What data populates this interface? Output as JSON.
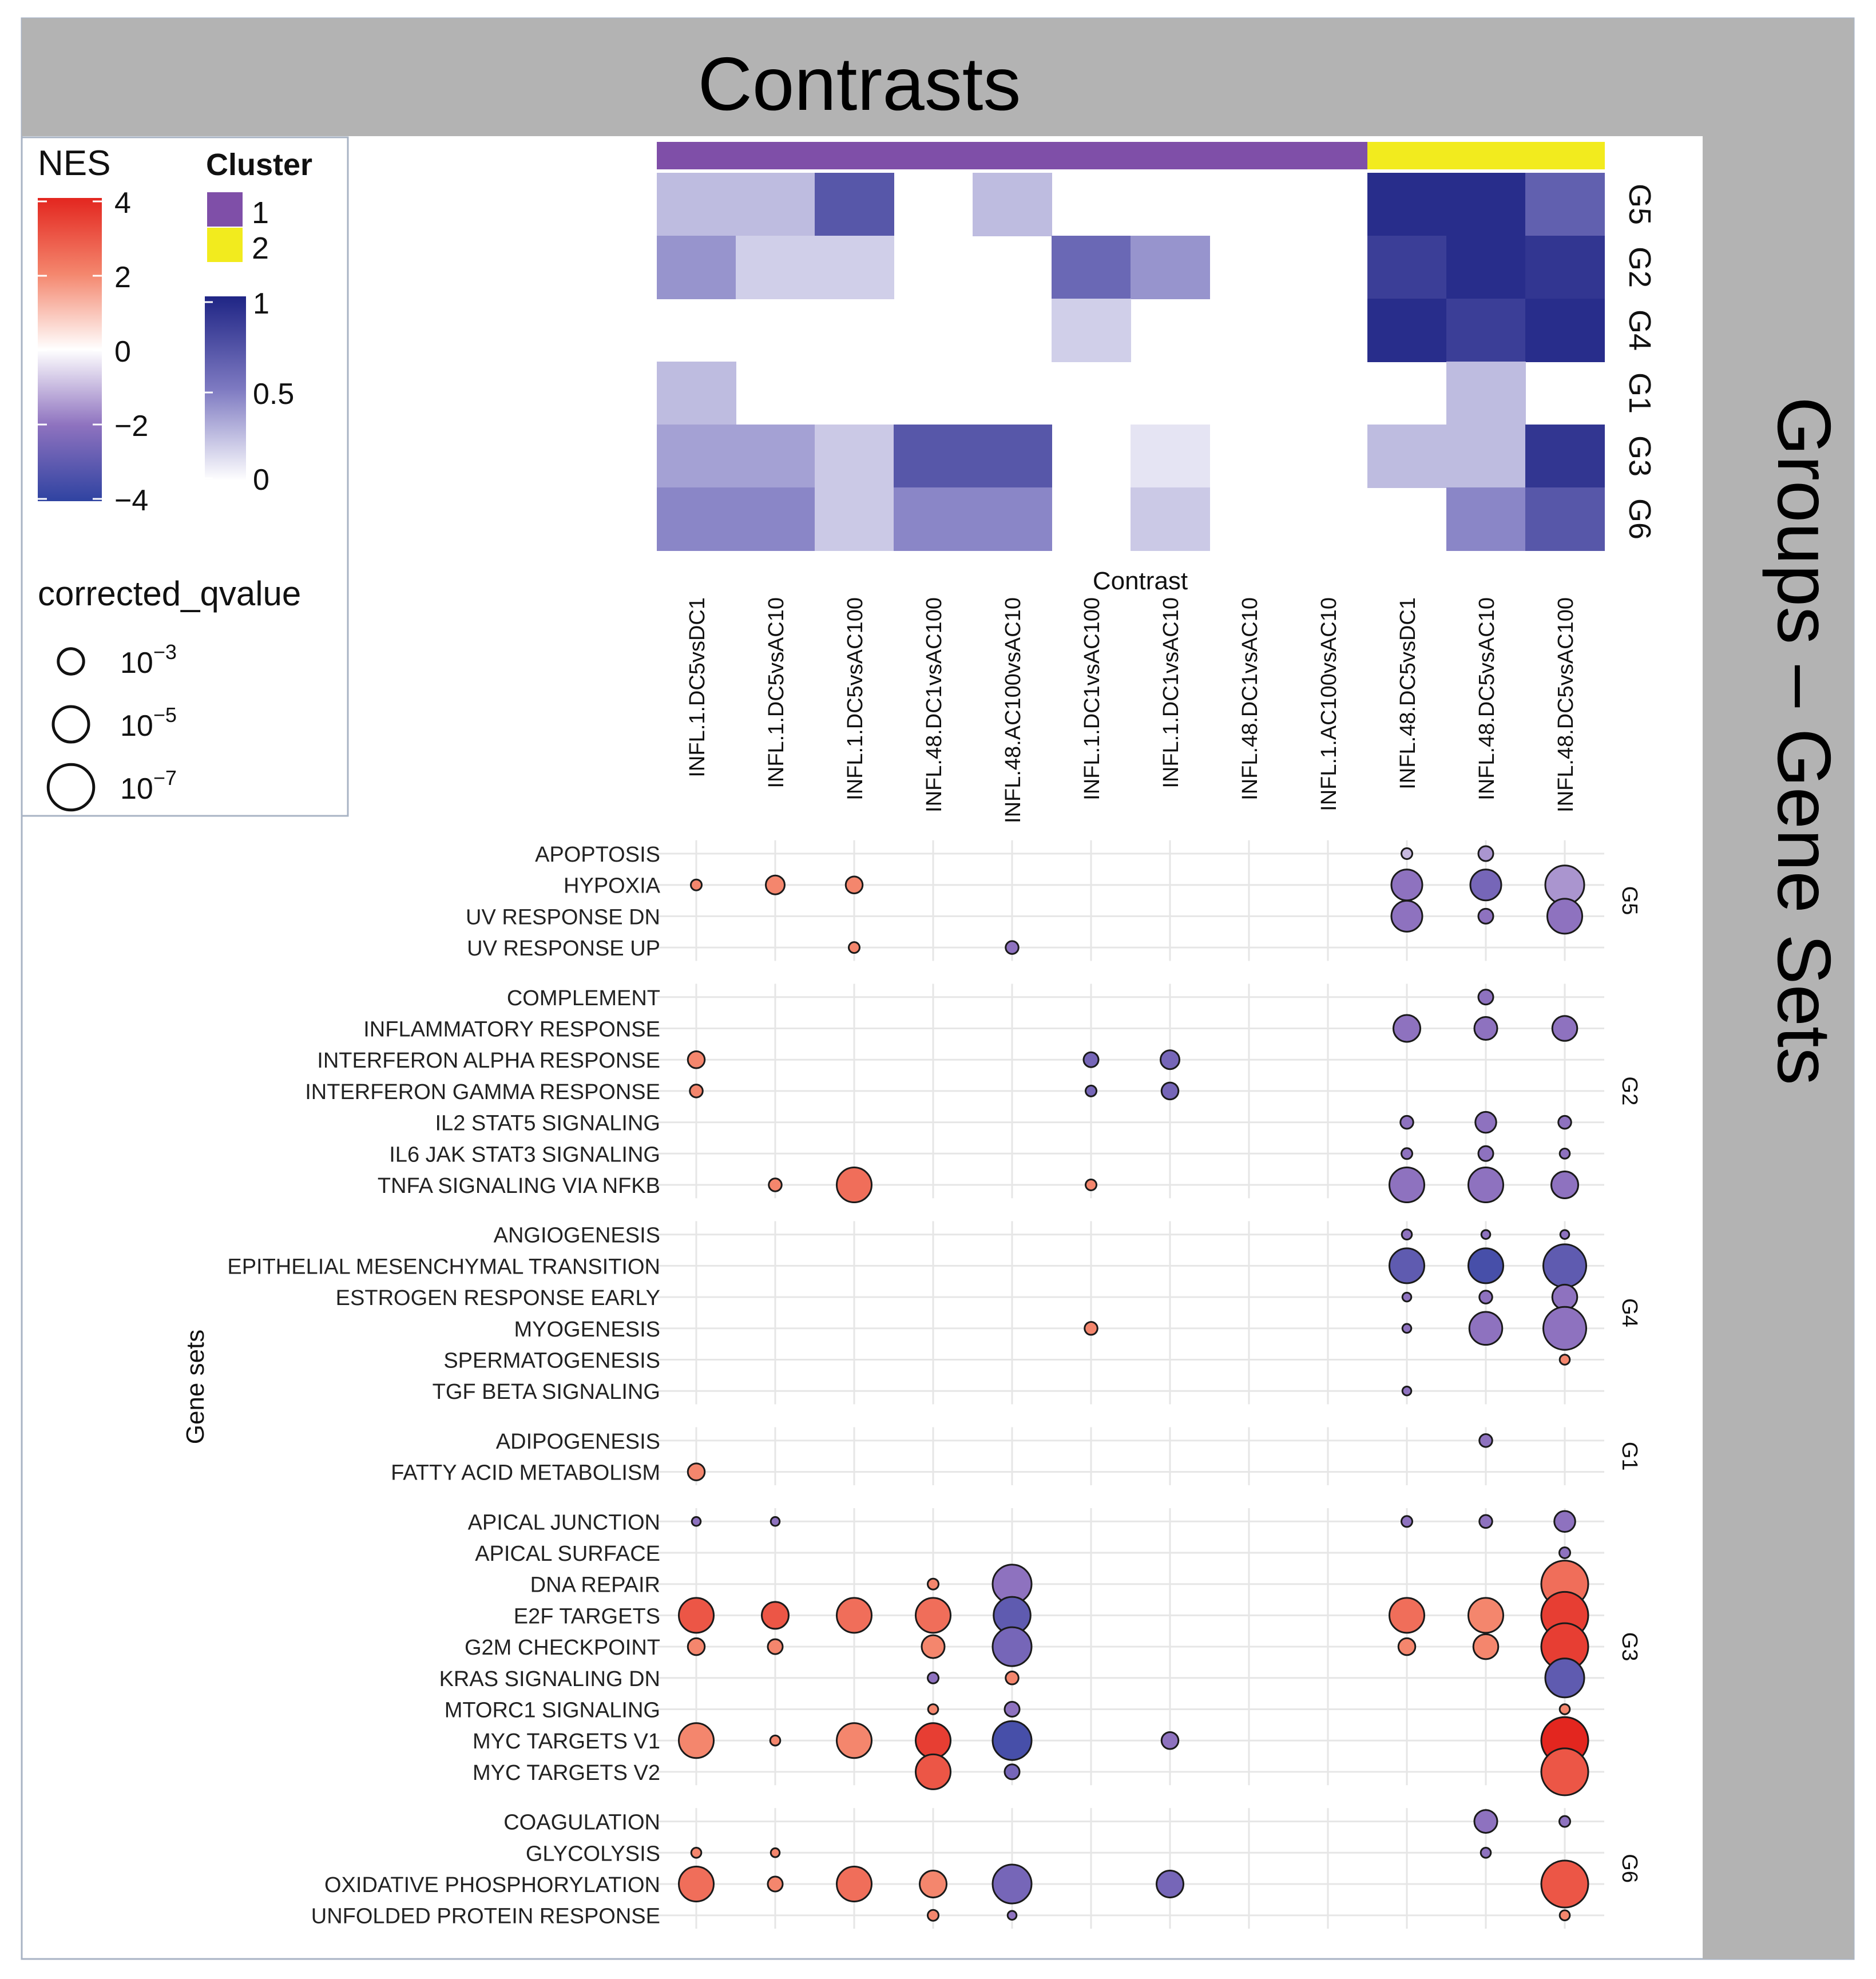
{
  "chart_data": {
    "type": "dot-heatmap",
    "title": "Contrasts",
    "right_strip_label": "Groups – Gene Sets",
    "xlabel": "Contrast",
    "ylabel": "Gene sets",
    "contrasts": [
      "INFL.1.DC5vsDC1",
      "INFL.1.DC5vsAC10",
      "INFL.1.DC5vsAC100",
      "INFL.48.DC1vsAC100",
      "INFL.48.AC100vsAC10",
      "INFL.1.DC1vsAC100",
      "INFL.1.DC1vsAC10",
      "INFL.48.DC1vsAC10",
      "INFL.1.AC100vsAC10",
      "INFL.48.DC5vsDC1",
      "INFL.48.DC5vsAC10",
      "INFL.48.DC5vsAC100"
    ],
    "contrast_clusters": [
      1,
      1,
      1,
      1,
      1,
      1,
      1,
      1,
      1,
      2,
      2,
      2
    ],
    "cluster_colors": {
      "1": "#7f4fa8",
      "2": "#f2eb1e"
    },
    "heatmap": {
      "groups": [
        "G5",
        "G2",
        "G4",
        "G1",
        "G3",
        "G6"
      ],
      "values": [
        [
          0.25,
          0.25,
          0.7,
          0,
          0.25,
          0,
          0,
          0,
          0,
          0.95,
          0.95,
          0.65
        ],
        [
          0.4,
          0.18,
          0.18,
          0,
          0,
          0.6,
          0.4,
          0,
          0,
          0.85,
          0.95,
          0.9
        ],
        [
          0,
          0,
          0,
          0,
          0,
          0.18,
          0,
          0,
          0,
          0.95,
          0.85,
          0.95
        ],
        [
          0.25,
          0,
          0,
          0,
          0,
          0,
          0,
          0,
          0,
          0,
          0.25,
          0
        ],
        [
          0.35,
          0.35,
          0.2,
          0.7,
          0.7,
          0,
          0.1,
          0,
          0,
          0.25,
          0.25,
          0.9
        ],
        [
          0.45,
          0.45,
          0.2,
          0.45,
          0.45,
          0,
          0.2,
          0,
          0,
          0,
          0.45,
          0.7
        ]
      ],
      "scale_min": 0,
      "scale_max": 1,
      "scale_ticks": [
        "1",
        "0.5",
        "0"
      ]
    },
    "legend": {
      "nes_title": "NES",
      "nes_ticks": [
        "4",
        "2",
        "0",
        "−2",
        "−4"
      ],
      "nes_range": [
        -4,
        4
      ],
      "cluster_title": "Cluster",
      "cluster_items": [
        "1",
        "2"
      ],
      "qvalue_title": "corrected_qvalue",
      "qvalue_items": [
        {
          "base": "10",
          "exp": "−3",
          "size": 3
        },
        {
          "base": "10",
          "exp": "−5",
          "size": 5
        },
        {
          "base": "10",
          "exp": "−7",
          "size": 7
        }
      ]
    },
    "dot_groups": [
      {
        "group": "G5",
        "gene_sets": [
          {
            "name": "APOPTOSIS",
            "dots": [
              [
                9,
                -1,
                1
              ],
              [
                10,
                -1.5,
                2
              ]
            ]
          },
          {
            "name": "HYPOXIA",
            "dots": [
              [
                0,
                2,
                1
              ],
              [
                1,
                2,
                3
              ],
              [
                2,
                2,
                2.5
              ],
              [
                9,
                -2,
                6
              ],
              [
                10,
                -2.5,
                6
              ],
              [
                11,
                -1.5,
                8
              ]
            ]
          },
          {
            "name": "UV RESPONSE DN",
            "dots": [
              [
                9,
                -2,
                6
              ],
              [
                10,
                -2,
                2
              ],
              [
                11,
                -2,
                7
              ]
            ]
          },
          {
            "name": "UV RESPONSE UP",
            "dots": [
              [
                2,
                2,
                1
              ],
              [
                4,
                -2,
                1.5
              ]
            ]
          }
        ]
      },
      {
        "group": "G2",
        "gene_sets": [
          {
            "name": "COMPLEMENT",
            "dots": [
              [
                10,
                -2,
                2
              ]
            ]
          },
          {
            "name": "INFLAMMATORY RESPONSE",
            "dots": [
              [
                9,
                -2,
                5
              ],
              [
                10,
                -2,
                4
              ],
              [
                11,
                -2,
                4.5
              ]
            ]
          },
          {
            "name": "INTERFERON ALPHA RESPONSE",
            "dots": [
              [
                0,
                2,
                2.5
              ],
              [
                5,
                -2.5,
                2
              ],
              [
                6,
                -2.5,
                3
              ]
            ]
          },
          {
            "name": "INTERFERON GAMMA RESPONSE",
            "dots": [
              [
                0,
                2,
                1.5
              ],
              [
                5,
                -2.5,
                1
              ],
              [
                6,
                -2.5,
                2.5
              ]
            ]
          },
          {
            "name": "IL2 STAT5 SIGNALING",
            "dots": [
              [
                9,
                -2,
                1.5
              ],
              [
                10,
                -2,
                3.5
              ],
              [
                11,
                -2,
                1.5
              ]
            ]
          },
          {
            "name": "IL6 JAK STAT3 SIGNALING",
            "dots": [
              [
                9,
                -2,
                1
              ],
              [
                10,
                -2,
                2
              ],
              [
                11,
                -2,
                0.8
              ]
            ]
          },
          {
            "name": "TNFA SIGNALING VIA NFKB",
            "dots": [
              [
                1,
                2,
                1.5
              ],
              [
                2,
                2.5,
                7
              ],
              [
                5,
                2,
                1
              ],
              [
                9,
                -2,
                7
              ],
              [
                10,
                -2,
                7
              ],
              [
                11,
                -2,
                5
              ]
            ]
          }
        ]
      },
      {
        "group": "G4",
        "gene_sets": [
          {
            "name": "ANGIOGENESIS",
            "dots": [
              [
                9,
                -2,
                0.8
              ],
              [
                10,
                -2,
                0.5
              ],
              [
                11,
                -2,
                0.5
              ]
            ]
          },
          {
            "name": "EPITHELIAL MESENCHYMAL TRANSITION",
            "dots": [
              [
                9,
                -3,
                7
              ],
              [
                10,
                -3.5,
                7
              ],
              [
                11,
                -3,
                9
              ]
            ]
          },
          {
            "name": "ESTROGEN RESPONSE EARLY",
            "dots": [
              [
                9,
                -2,
                0.5
              ],
              [
                10,
                -2,
                1.5
              ],
              [
                11,
                -2,
                4.5
              ]
            ]
          },
          {
            "name": "MYOGENESIS",
            "dots": [
              [
                5,
                2,
                1.5
              ],
              [
                9,
                -2,
                0.5
              ],
              [
                10,
                -2,
                6.5
              ],
              [
                11,
                -2,
                9
              ]
            ]
          },
          {
            "name": "SPERMATOGENESIS",
            "dots": [
              [
                11,
                2,
                0.8
              ]
            ]
          },
          {
            "name": "TGF BETA SIGNALING",
            "dots": [
              [
                9,
                -2,
                0.5
              ]
            ]
          }
        ]
      },
      {
        "group": "G1",
        "gene_sets": [
          {
            "name": "ADIPOGENESIS",
            "dots": [
              [
                10,
                -2,
                1.5
              ]
            ]
          },
          {
            "name": "FATTY ACID METABOLISM",
            "dots": [
              [
                0,
                2,
                2.5
              ]
            ]
          }
        ]
      },
      {
        "group": "G3",
        "gene_sets": [
          {
            "name": "APICAL JUNCTION",
            "dots": [
              [
                0,
                -2,
                0.5
              ],
              [
                1,
                -2,
                0.5
              ],
              [
                9,
                -2,
                1
              ],
              [
                10,
                -2,
                1.5
              ],
              [
                11,
                -2,
                3.5
              ]
            ]
          },
          {
            "name": "APICAL SURFACE",
            "dots": [
              [
                11,
                -2,
                1
              ]
            ]
          },
          {
            "name": "DNA REPAIR",
            "dots": [
              [
                3,
                2,
                1
              ],
              [
                4,
                -2,
                8
              ],
              [
                11,
                2.5,
                10
              ]
            ]
          },
          {
            "name": "E2F TARGETS",
            "dots": [
              [
                0,
                3,
                7
              ],
              [
                1,
                3,
                5
              ],
              [
                2,
                2.5,
                7
              ],
              [
                3,
                2.5,
                7
              ],
              [
                4,
                -3,
                7.5
              ],
              [
                9,
                2.5,
                7
              ],
              [
                10,
                2,
                7
              ],
              [
                11,
                3.5,
                10
              ]
            ]
          },
          {
            "name": "G2M CHECKPOINT",
            "dots": [
              [
                0,
                2,
                2.5
              ],
              [
                1,
                2,
                2
              ],
              [
                3,
                2,
                4
              ],
              [
                4,
                -2.5,
                8
              ],
              [
                9,
                2,
                2.5
              ],
              [
                10,
                2,
                4.5
              ],
              [
                11,
                3.5,
                10
              ]
            ]
          },
          {
            "name": "KRAS SIGNALING DN",
            "dots": [
              [
                3,
                -2,
                1
              ],
              [
                4,
                2,
                1.5
              ],
              [
                11,
                -3,
                8
              ]
            ]
          },
          {
            "name": "MTORC1 SIGNALING",
            "dots": [
              [
                3,
                2,
                0.8
              ],
              [
                4,
                -2,
                2
              ],
              [
                11,
                2,
                0.8
              ]
            ]
          },
          {
            "name": "MYC TARGETS V1",
            "dots": [
              [
                0,
                2,
                7
              ],
              [
                1,
                2,
                0.8
              ],
              [
                2,
                2,
                7
              ],
              [
                3,
                3.5,
                7
              ],
              [
                4,
                -3.5,
                8
              ],
              [
                6,
                -2,
                2.5
              ],
              [
                11,
                4,
                10
              ]
            ]
          },
          {
            "name": "MYC TARGETS V2",
            "dots": [
              [
                3,
                3,
                7
              ],
              [
                4,
                -2.5,
                2
              ],
              [
                11,
                3,
                10
              ]
            ]
          }
        ]
      },
      {
        "group": "G6",
        "gene_sets": [
          {
            "name": "COAGULATION",
            "dots": [
              [
                10,
                -2,
                4
              ],
              [
                11,
                -2,
                1
              ]
            ]
          },
          {
            "name": "GLYCOLYSIS",
            "dots": [
              [
                0,
                2,
                0.8
              ],
              [
                1,
                2,
                0.5
              ],
              [
                10,
                -2,
                0.8
              ]
            ]
          },
          {
            "name": "OXIDATIVE PHOSPHORYLATION",
            "dots": [
              [
                0,
                2.5,
                7
              ],
              [
                1,
                2,
                2
              ],
              [
                2,
                2.5,
                7
              ],
              [
                3,
                2,
                5
              ],
              [
                4,
                -2.5,
                8
              ],
              [
                6,
                -2.5,
                5
              ],
              [
                11,
                3,
                10
              ]
            ]
          },
          {
            "name": "UNFOLDED PROTEIN RESPONSE",
            "dots": [
              [
                3,
                2,
                1
              ],
              [
                4,
                -2,
                0.5
              ],
              [
                11,
                2,
                0.8
              ]
            ]
          }
        ]
      }
    ]
  }
}
